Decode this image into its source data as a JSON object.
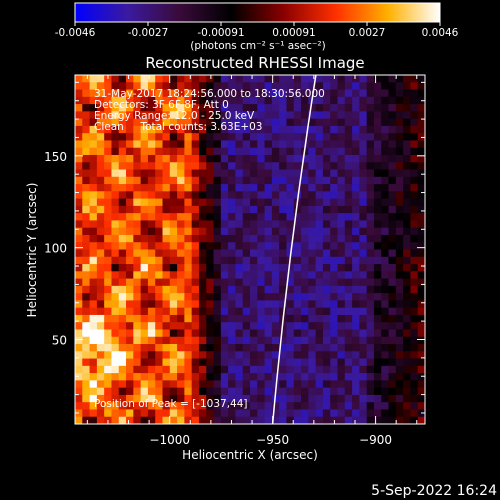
{
  "colorbar": {
    "ticks": [
      "-0.0046",
      "-0.0027",
      "-0.00091",
      "0.00091",
      "0.0027",
      "0.0046"
    ],
    "unit_label": "(photons cm⁻² s⁻¹ asec⁻²)",
    "stops": [
      "#0000ff",
      "#3a1aa0",
      "#3a0a3a",
      "#000000",
      "#8a0000",
      "#ff3000",
      "#ffb000",
      "#ffffff"
    ]
  },
  "chart_data": {
    "type": "heatmap",
    "title": "Reconstructed RHESSI Image",
    "xlabel": "Heliocentric X (arcsec)",
    "ylabel": "Heliocentric Y (arcsec)",
    "xlim": [
      -1046,
      -876
    ],
    "ylim": [
      4,
      194
    ],
    "x_ticks": [
      -1000,
      -950,
      -900
    ],
    "y_ticks": [
      50,
      100,
      150
    ],
    "value_range": [
      -0.0046,
      0.0046
    ],
    "peak": {
      "x": -1037,
      "y": 44
    },
    "limb_arc": [
      [
        -929,
        194
      ],
      [
        -950,
        4
      ]
    ],
    "annotations": [
      "31-May-2017 18:24:56.000 to 18:30:56.000",
      "Detectors: 3F 6F 8F, Att 0",
      "Energy Range: 12.0 - 25.0 keV",
      "Clean     Total counts: 3.63E+03",
      "Position of Peak = [-1037,44]"
    ]
  },
  "footer": {
    "date": "5-Sep-2022 16:24"
  }
}
